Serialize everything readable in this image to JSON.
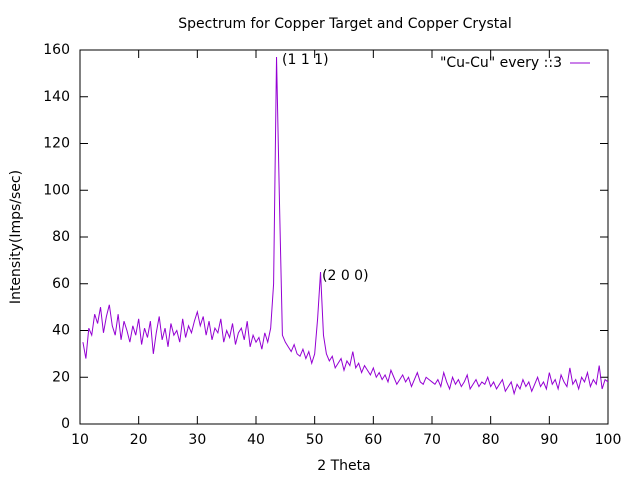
{
  "chart_data": {
    "type": "line",
    "title": "Spectrum for Copper Target and Copper Crystal",
    "x_label": "2 Theta",
    "y_label": "Intensity(Imps/sec)",
    "annotations": [
      "(1 1 1)",
      "(2 0 0)"
    ],
    "legend_position": "top-right",
    "xlim": [
      10,
      100
    ],
    "xticks": [
      10,
      20,
      30,
      40,
      50,
      60,
      70,
      80,
      90,
      100
    ],
    "ylim": [
      0,
      160
    ],
    "yticks": [
      0,
      20,
      40,
      60,
      80,
      100,
      120,
      140,
      160
    ],
    "x": [
      10.5,
      11,
      11.5,
      12,
      12.5,
      13,
      13.5,
      14,
      14.5,
      15,
      15.5,
      16,
      16.5,
      17,
      17.5,
      18,
      18.5,
      19,
      19.5,
      20,
      20.5,
      21,
      21.5,
      22,
      22.5,
      23,
      23.5,
      24,
      24.5,
      25,
      25.5,
      26,
      26.5,
      27,
      27.5,
      28,
      28.5,
      29,
      29.5,
      30,
      30.5,
      31,
      31.5,
      32,
      32.5,
      33,
      33.5,
      34,
      34.5,
      35,
      35.5,
      36,
      36.5,
      37,
      37.5,
      38,
      38.5,
      39,
      39.5,
      40,
      40.5,
      41,
      41.5,
      42,
      42.5,
      43,
      43.5,
      44,
      44.5,
      45,
      45.5,
      46,
      46.5,
      47,
      47.5,
      48,
      48.5,
      49,
      49.5,
      50,
      50.5,
      51,
      51.5,
      52,
      52.5,
      53,
      53.5,
      54,
      54.5,
      55,
      55.5,
      56,
      56.5,
      57,
      57.5,
      58,
      58.5,
      59,
      59.5,
      60,
      60.5,
      61,
      61.5,
      62,
      62.5,
      63,
      63.5,
      64,
      64.5,
      65,
      65.5,
      66,
      66.5,
      67,
      67.5,
      68,
      68.5,
      69,
      69.5,
      70,
      70.5,
      71,
      71.5,
      72,
      72.5,
      73,
      73.5,
      74,
      74.5,
      75,
      75.5,
      76,
      76.5,
      77,
      77.5,
      78,
      78.5,
      79,
      79.5,
      80,
      80.5,
      81,
      81.5,
      82,
      82.5,
      83,
      83.5,
      84,
      84.5,
      85,
      85.5,
      86,
      86.5,
      87,
      87.5,
      88,
      88.5,
      89,
      89.5,
      90,
      90.5,
      91,
      91.5,
      92,
      92.5,
      93,
      93.5,
      94,
      94.5,
      95,
      95.5,
      96,
      96.5,
      97,
      97.5,
      98,
      98.5,
      99,
      99.5,
      100
    ],
    "series": [
      {
        "name": "\"Cu-Cu\" every ::3",
        "color": "#9400d3",
        "values": [
          35,
          28,
          41,
          38,
          47,
          43,
          50,
          39,
          46,
          51,
          42,
          38,
          47,
          36,
          44,
          40,
          35,
          42,
          38,
          45,
          34,
          41,
          37,
          44,
          30,
          39,
          46,
          36,
          41,
          33,
          43,
          38,
          40,
          35,
          45,
          37,
          42,
          39,
          44,
          48,
          42,
          46,
          38,
          44,
          36,
          41,
          39,
          45,
          35,
          40,
          37,
          43,
          34,
          39,
          41,
          36,
          44,
          33,
          38,
          35,
          37,
          32,
          39,
          35,
          41,
          60,
          157,
          95,
          38,
          35,
          33,
          31,
          34,
          30,
          29,
          32,
          28,
          31,
          26,
          30,
          45,
          65,
          38,
          30,
          27,
          29,
          24,
          26,
          28,
          23,
          27,
          25,
          31,
          24,
          26,
          22,
          25,
          23,
          21,
          24,
          20,
          22,
          19,
          21,
          18,
          23,
          20,
          17,
          19,
          21,
          18,
          20,
          16,
          19,
          22,
          18,
          17,
          20,
          19,
          18,
          17,
          19,
          16,
          22,
          18,
          15,
          20,
          17,
          19,
          16,
          18,
          21,
          15,
          17,
          19,
          16,
          18,
          17,
          20,
          16,
          18,
          15,
          17,
          19,
          14,
          16,
          18,
          13,
          17,
          15,
          19,
          16,
          18,
          14,
          17,
          20,
          16,
          18,
          15,
          22,
          17,
          19,
          15,
          21,
          18,
          16,
          24,
          17,
          19,
          15,
          20,
          18,
          22,
          16,
          19,
          17,
          25,
          15,
          19,
          18
        ]
      }
    ]
  }
}
